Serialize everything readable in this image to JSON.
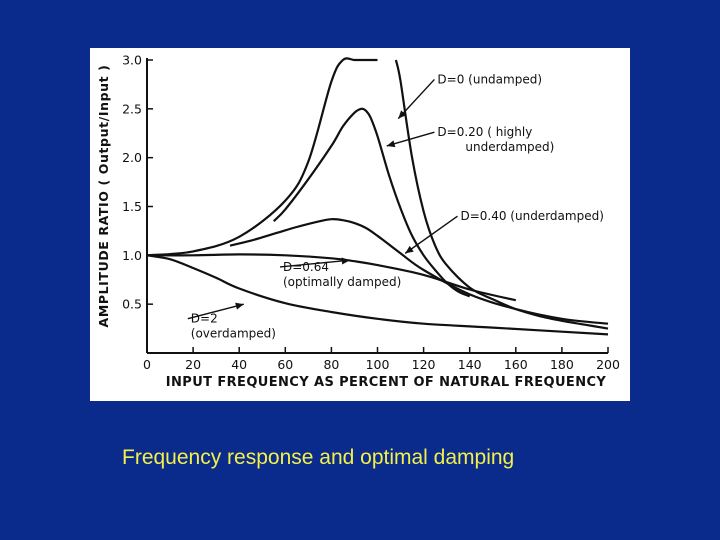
{
  "caption": "Frequency response and optimal damping",
  "colors": {
    "background": "#0a2a8c",
    "panel": "#ffffff",
    "ink": "#111111",
    "caption": "#f3f04a"
  },
  "chart_data": {
    "type": "line",
    "title": "",
    "xlabel": "INPUT FREQUENCY AS PERCENT OF NATURAL FREQUENCY",
    "ylabel": "AMPLITUDE RATIO ( Output/Input )",
    "xlim": [
      0,
      200
    ],
    "ylim": [
      0,
      3.0
    ],
    "xticks": [
      "0",
      "20",
      "40",
      "60",
      "80",
      "100",
      "120",
      "140",
      "160",
      "180",
      "200"
    ],
    "yticks": [
      "3.0",
      "2.5",
      "2.0",
      "1.5",
      "1.0",
      "0.5"
    ],
    "grid": false,
    "series": [
      {
        "name": "D=0",
        "x": [
          0,
          20,
          40,
          60,
          70,
          80,
          85,
          90,
          94,
          97,
          100
        ],
        "y": [
          1.0,
          1.04,
          1.19,
          1.56,
          1.96,
          2.78,
          3.0,
          3.0,
          3.0,
          3.0,
          3.0
        ]
      },
      {
        "name": "D=0",
        "x": [
          108,
          110,
          115,
          120,
          125,
          130,
          140,
          150,
          160,
          170,
          180,
          190,
          200
        ],
        "y": [
          3.0,
          2.78,
          2.0,
          1.45,
          1.1,
          0.9,
          0.67,
          0.55,
          0.45,
          0.38,
          0.33,
          0.29,
          0.25
        ]
      },
      {
        "name": "D=0.20",
        "x": [
          55,
          60,
          70,
          80,
          85,
          90,
          93,
          95,
          97,
          100,
          105,
          110,
          115,
          120,
          125,
          130,
          135,
          140
        ],
        "y": [
          1.35,
          1.47,
          1.78,
          2.12,
          2.32,
          2.46,
          2.5,
          2.48,
          2.41,
          2.22,
          1.82,
          1.48,
          1.2,
          1.0,
          0.85,
          0.72,
          0.63,
          0.58
        ]
      },
      {
        "name": "D=0.40",
        "x": [
          36,
          45,
          55,
          65,
          75,
          80,
          85,
          90,
          95,
          100,
          110,
          120,
          140,
          160,
          180,
          200
        ],
        "y": [
          1.1,
          1.15,
          1.22,
          1.29,
          1.35,
          1.37,
          1.36,
          1.33,
          1.28,
          1.2,
          1.02,
          0.85,
          0.6,
          0.45,
          0.35,
          0.3
        ]
      },
      {
        "name": "D=0.64",
        "x": [
          0,
          20,
          40,
          60,
          80,
          90,
          100,
          120,
          140,
          160
        ],
        "y": [
          1.0,
          1.0,
          1.01,
          1.0,
          0.97,
          0.94,
          0.9,
          0.8,
          0.65,
          0.54
        ]
      },
      {
        "name": "D=2",
        "x": [
          0,
          10,
          20,
          30,
          40,
          60,
          80,
          100,
          120,
          150,
          200
        ],
        "y": [
          1.0,
          0.96,
          0.87,
          0.77,
          0.66,
          0.51,
          0.42,
          0.35,
          0.3,
          0.26,
          0.19
        ]
      }
    ],
    "annotations": [
      {
        "lines": [
          "D=0 (undamped)"
        ],
        "x": 126,
        "y": 2.76,
        "arrow_to": [
          109,
          2.4
        ]
      },
      {
        "lines": [
          "D=0.20 ( highly",
          "underdamped)"
        ],
        "x": 126,
        "y": 2.22,
        "arrow_to": [
          104,
          2.12
        ]
      },
      {
        "lines": [
          "D=0.40 (underdamped)"
        ],
        "x": 136,
        "y": 1.36,
        "arrow_to": [
          112,
          1.02
        ]
      },
      {
        "lines": [
          "D=0.64",
          "(optimally damped)"
        ],
        "x": 59,
        "y": 0.84,
        "arrow_to": [
          88,
          0.95
        ]
      },
      {
        "lines": [
          "D=2",
          "(overdamped)"
        ],
        "x": 19,
        "y": 0.31,
        "arrow_to": [
          42,
          0.5
        ]
      }
    ]
  }
}
